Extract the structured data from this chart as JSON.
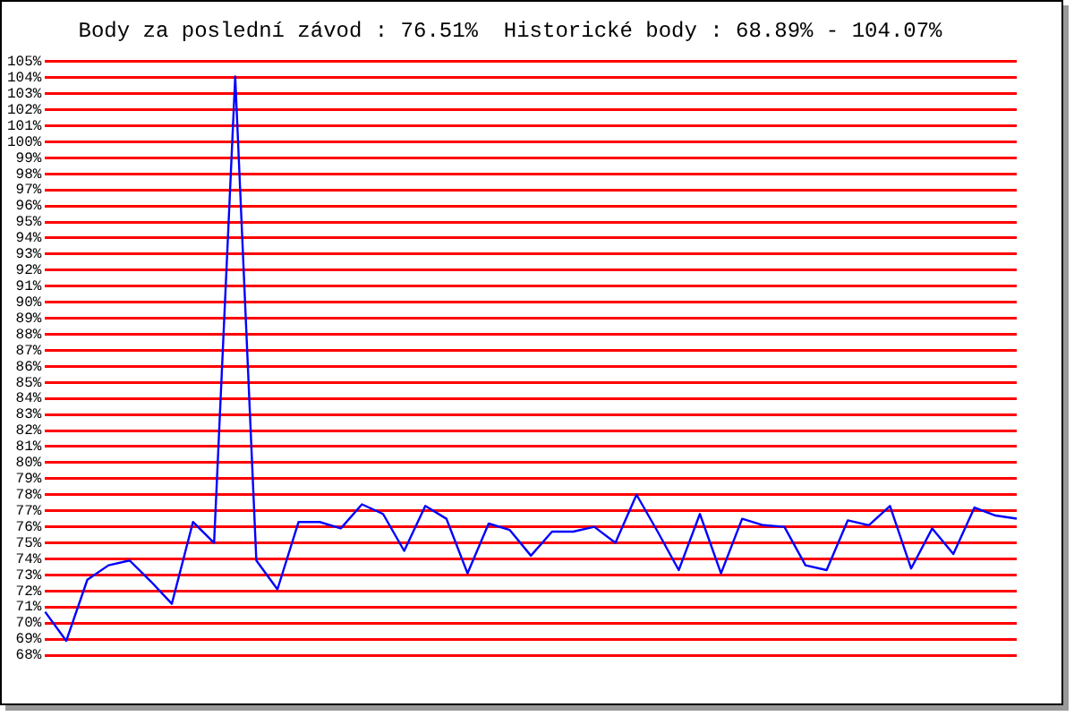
{
  "chart_data": {
    "type": "line",
    "title": "Body za poslední závod : 76.51%  Historické body : 68.89% - 104.07%",
    "categories": [
      null,
      null,
      null,
      null,
      null,
      null,
      null,
      null,
      null,
      null,
      null,
      null,
      null,
      null,
      null,
      null,
      null,
      null,
      null,
      null,
      null,
      null,
      null,
      null,
      null,
      null,
      null,
      null,
      null,
      null,
      null,
      null,
      null,
      null,
      null,
      null,
      null,
      null,
      null,
      null,
      null,
      null,
      null,
      null,
      null,
      null,
      null
    ],
    "series": [
      {
        "color": "#0000ff",
        "values": [
          70.7,
          68.89,
          72.7,
          73.6,
          73.9,
          72.6,
          71.2,
          76.3,
          75.0,
          104.07,
          73.9,
          72.1,
          76.3,
          76.3,
          75.9,
          77.4,
          76.8,
          74.5,
          77.3,
          76.5,
          73.1,
          76.2,
          75.8,
          74.2,
          75.7,
          75.7,
          76.0,
          75.0,
          78.0,
          75.7,
          73.3,
          76.8,
          73.1,
          76.5,
          76.1,
          76.0,
          73.6,
          73.3,
          76.4,
          76.1,
          77.3,
          73.4,
          75.9,
          74.3,
          77.2,
          76.7,
          76.51
        ]
      }
    ],
    "ylim": [
      68,
      105
    ],
    "yticks": [
      {
        "value": 68,
        "label": "68%"
      },
      {
        "value": 69,
        "label": "69%"
      },
      {
        "value": 70,
        "label": "70%"
      },
      {
        "value": 71,
        "label": "71%"
      },
      {
        "value": 72,
        "label": "72%"
      },
      {
        "value": 73,
        "label": "73%"
      },
      {
        "value": 74,
        "label": "74%"
      },
      {
        "value": 75,
        "label": "75%"
      },
      {
        "value": 76,
        "label": "76%"
      },
      {
        "value": 77,
        "label": "77%"
      },
      {
        "value": 78,
        "label": "78%"
      },
      {
        "value": 79,
        "label": "79%"
      },
      {
        "value": 80,
        "label": "80%"
      },
      {
        "value": 81,
        "label": "81%"
      },
      {
        "value": 82,
        "label": "82%"
      },
      {
        "value": 83,
        "label": "83%"
      },
      {
        "value": 84,
        "label": "84%"
      },
      {
        "value": 85,
        "label": "85%"
      },
      {
        "value": 86,
        "label": "86%"
      },
      {
        "value": 87,
        "label": "87%"
      },
      {
        "value": 88,
        "label": "88%"
      },
      {
        "value": 89,
        "label": "89%"
      },
      {
        "value": 90,
        "label": "90%"
      },
      {
        "value": 91,
        "label": "91%"
      },
      {
        "value": 92,
        "label": "92%"
      },
      {
        "value": 93,
        "label": "93%"
      },
      {
        "value": 94,
        "label": "94%"
      },
      {
        "value": 95,
        "label": "95%"
      },
      {
        "value": 96,
        "label": "96%"
      },
      {
        "value": 97,
        "label": "97%"
      },
      {
        "value": 98,
        "label": "98%"
      },
      {
        "value": 99,
        "label": "99%"
      },
      {
        "value": 100,
        "label": "100%"
      },
      {
        "value": 101,
        "label": "101%"
      },
      {
        "value": 102,
        "label": "102%"
      },
      {
        "value": 103,
        "label": "103%"
      },
      {
        "value": 104,
        "label": "104%"
      },
      {
        "value": 105,
        "label": "105%"
      }
    ],
    "grid": "y",
    "marker": "none",
    "line_style": "solid",
    "tick_labels": "y"
  }
}
